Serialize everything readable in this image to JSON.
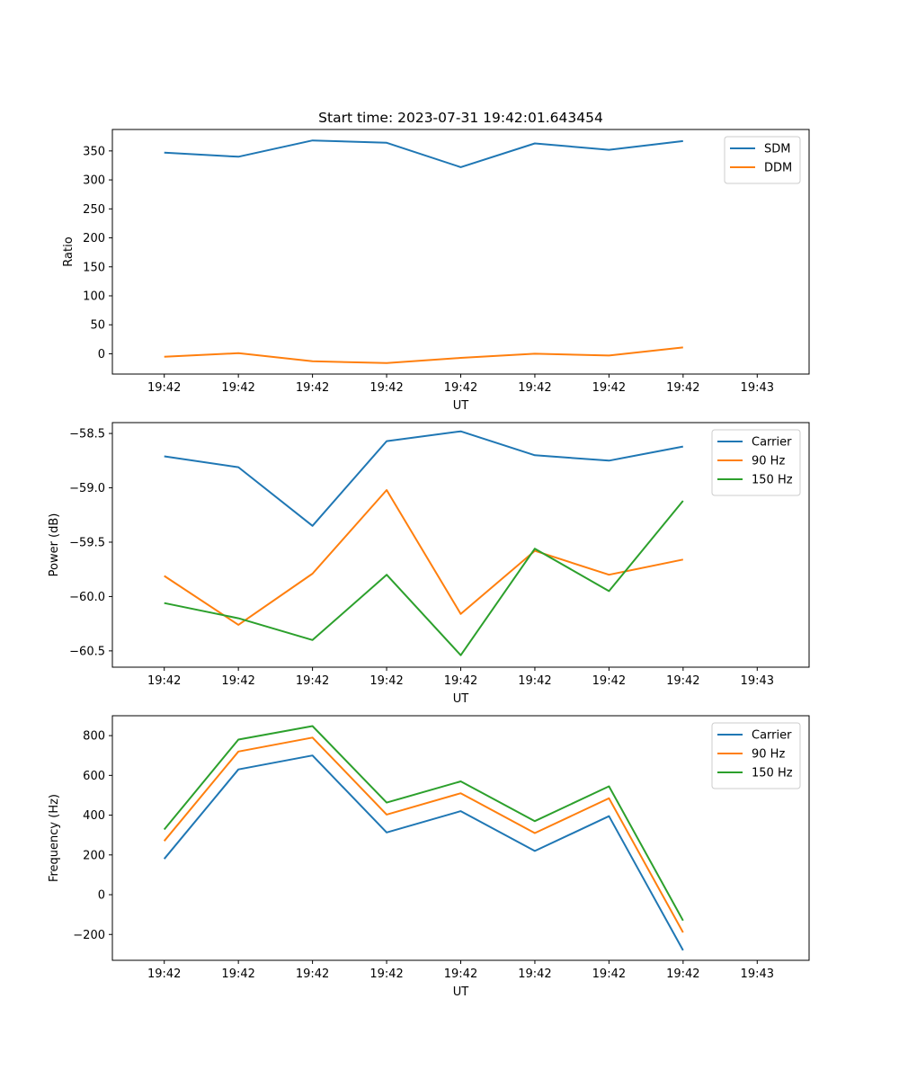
{
  "chart_data": [
    {
      "type": "line",
      "title": "Start time: 2023-07-31 19:42:01.643454",
      "xlabel": "UT",
      "ylabel": "Ratio",
      "x_tick_labels": [
        "19:42",
        "19:42",
        "19:42",
        "19:42",
        "19:42",
        "19:42",
        "19:42",
        "19:42",
        "19:43"
      ],
      "y_ticks": [
        0,
        50,
        100,
        150,
        200,
        250,
        300,
        350
      ],
      "y_tick_labels": [
        "0",
        "50",
        "100",
        "150",
        "200",
        "250",
        "300",
        "350"
      ],
      "ylim": [
        -35,
        387
      ],
      "x_index_range": [
        -0.7,
        8.7
      ],
      "x": [
        0,
        1,
        2,
        3,
        4,
        5,
        6,
        7
      ],
      "series": [
        {
          "name": "SDM",
          "color": "#1f77b4",
          "values": [
            347,
            340,
            368,
            364,
            322,
            363,
            352,
            367
          ]
        },
        {
          "name": "DDM",
          "color": "#ff7f0e",
          "values": [
            -5,
            1,
            -13,
            -16,
            -7,
            0,
            -3,
            11
          ]
        }
      ],
      "legend": "top-right"
    },
    {
      "type": "line",
      "title": "",
      "xlabel": "UT",
      "ylabel": "Power (dB)",
      "x_tick_labels": [
        "19:42",
        "19:42",
        "19:42",
        "19:42",
        "19:42",
        "19:42",
        "19:42",
        "19:42",
        "19:43"
      ],
      "y_ticks": [
        -60.5,
        -60.0,
        -59.5,
        -59.0,
        -58.5
      ],
      "y_tick_labels": [
        "−60.5",
        "−60.0",
        "−59.5",
        "−59.0",
        "−58.5"
      ],
      "ylim": [
        -60.65,
        -58.4
      ],
      "x_index_range": [
        -0.7,
        8.7
      ],
      "x": [
        0,
        1,
        2,
        3,
        4,
        5,
        6,
        7
      ],
      "series": [
        {
          "name": "Carrier",
          "color": "#1f77b4",
          "values": [
            -58.71,
            -58.81,
            -59.35,
            -58.57,
            -58.48,
            -58.7,
            -58.75,
            -58.62
          ]
        },
        {
          "name": "90 Hz",
          "color": "#ff7f0e",
          "values": [
            -59.81,
            -60.26,
            -59.79,
            -59.02,
            -60.16,
            -59.58,
            -59.8,
            -59.66
          ]
        },
        {
          "name": "150 Hz",
          "color": "#2ca02c",
          "values": [
            -60.06,
            -60.2,
            -60.4,
            -59.8,
            -60.54,
            -59.56,
            -59.95,
            -59.12
          ]
        }
      ],
      "legend": "top-right"
    },
    {
      "type": "line",
      "title": "",
      "xlabel": "UT",
      "ylabel": "Frequency (Hz)",
      "x_tick_labels": [
        "19:42",
        "19:42",
        "19:42",
        "19:42",
        "19:42",
        "19:42",
        "19:42",
        "19:42",
        "19:43"
      ],
      "y_ticks": [
        -200,
        0,
        200,
        400,
        600,
        800
      ],
      "y_tick_labels": [
        "−200",
        "0",
        "200",
        "400",
        "600",
        "800"
      ],
      "ylim": [
        -330,
        900
      ],
      "x_index_range": [
        -0.7,
        8.7
      ],
      "x": [
        0,
        1,
        2,
        3,
        4,
        5,
        6,
        7
      ],
      "series": [
        {
          "name": "Carrier",
          "color": "#1f77b4",
          "values": [
            180,
            630,
            700,
            313,
            420,
            220,
            395,
            -280
          ]
        },
        {
          "name": "90 Hz",
          "color": "#ff7f0e",
          "values": [
            270,
            720,
            790,
            403,
            510,
            310,
            485,
            -190
          ]
        },
        {
          "name": "150 Hz",
          "color": "#2ca02c",
          "values": [
            328,
            780,
            848,
            463,
            570,
            370,
            545,
            -130
          ]
        }
      ],
      "legend": "top-right"
    }
  ]
}
